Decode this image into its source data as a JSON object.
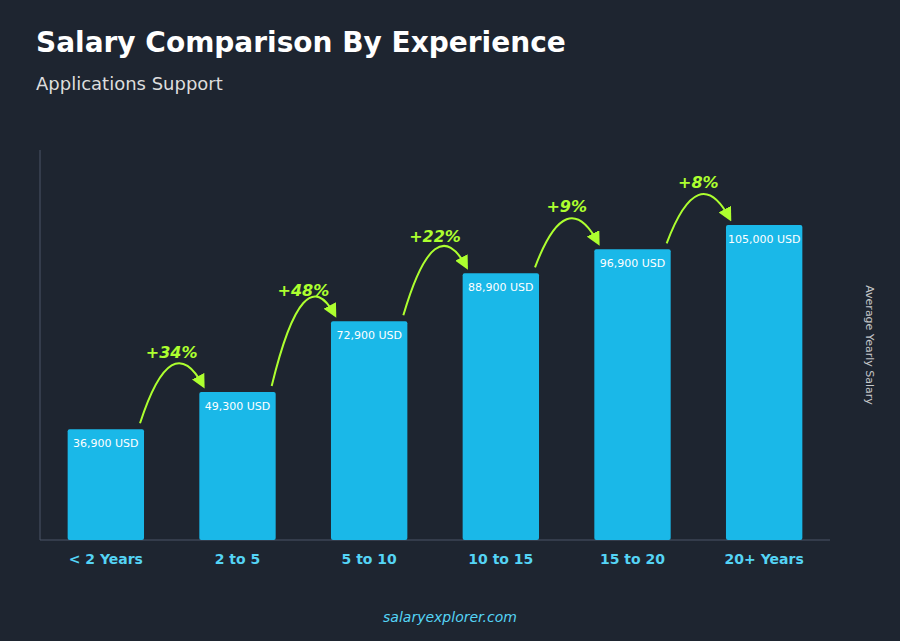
{
  "chart_data": {
    "type": "bar",
    "title": "Salary Comparison By Experience",
    "subtitle": "Applications Support",
    "categories": [
      "< 2 Years",
      "2 to 5",
      "5 to 10",
      "10 to 15",
      "15 to 20",
      "20+ Years"
    ],
    "values": [
      36900,
      49300,
      72900,
      88900,
      96900,
      105000
    ],
    "value_labels": [
      "36,900 USD",
      "49,300 USD",
      "72,900 USD",
      "88,900 USD",
      "96,900 USD",
      "105,000 USD"
    ],
    "data_labels": true,
    "annotations": [
      "+34%",
      "+48%",
      "+22%",
      "+9%",
      "+8%"
    ],
    "ylabel": "Average Yearly Salary",
    "footer": "salaryexplorer.com",
    "color": "#1ab8e8",
    "ylim": [
      0,
      130000
    ],
    "grid": false,
    "tick_labels": "x"
  }
}
